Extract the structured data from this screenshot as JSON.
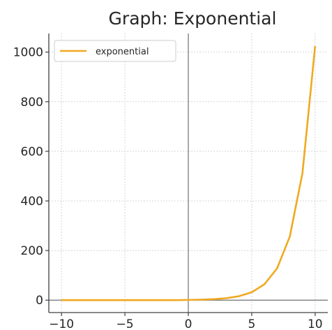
{
  "chart_data": {
    "type": "line",
    "title": "Graph: Exponential",
    "xlabel": "",
    "ylabel": "",
    "xlim": [
      -11,
      11
    ],
    "ylim": [
      -50,
      1075
    ],
    "x_ticks": [
      -10,
      -5,
      0,
      5,
      10
    ],
    "x_tick_labels": [
      "−10",
      "−5",
      "0",
      "5",
      "10"
    ],
    "y_ticks": [
      0,
      200,
      400,
      600,
      800,
      1000
    ],
    "y_tick_labels": [
      "0",
      "200",
      "400",
      "600",
      "800",
      "1000"
    ],
    "grid": true,
    "legend_position": "top-left",
    "series": [
      {
        "name": "exponential",
        "color": "#f0a920",
        "x": [
          -10,
          -9,
          -8,
          -7,
          -6,
          -5,
          -4,
          -3,
          -2,
          -1,
          0,
          1,
          2,
          3,
          4,
          5,
          6,
          7,
          8,
          9,
          10
        ],
        "y": [
          0,
          0,
          0,
          0,
          0,
          0,
          0,
          0,
          0,
          0,
          1,
          2,
          4,
          8,
          16,
          32,
          64,
          128,
          256,
          512,
          1024
        ]
      }
    ]
  }
}
